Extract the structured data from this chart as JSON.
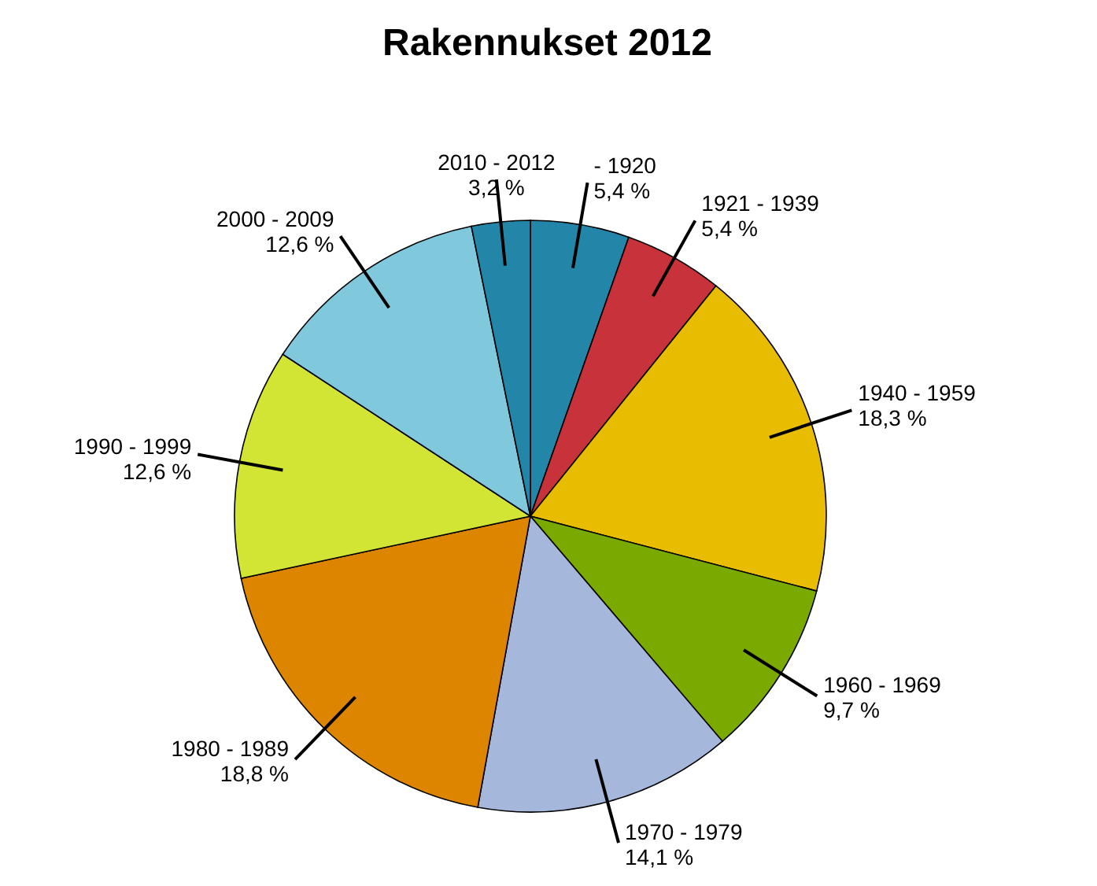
{
  "chart_data": {
    "type": "pie",
    "title": "Rakennukset 2012",
    "categories": [
      "- 1920",
      "1921 - 1939",
      "1940 - 1959",
      "1960 - 1969",
      "1970 - 1979",
      "1980 - 1989",
      "1990 - 1999",
      "2000 - 2009",
      "2010 - 2012"
    ],
    "values": [
      5.4,
      5.4,
      18.3,
      9.7,
      14.1,
      18.8,
      12.6,
      12.6,
      3.2
    ],
    "value_labels": [
      "5,4 %",
      "5,4 %",
      "18,3 %",
      "9,7 %",
      "14,1 %",
      "18,8 %",
      "12,6 %",
      "12,6 %",
      "3,2 %"
    ],
    "colors": [
      "#2386a8",
      "#c8323a",
      "#e8bc00",
      "#7aaa00",
      "#a6b7dc",
      "#de8500",
      "#d2e434",
      "#80c8dc",
      "#2386a8"
    ]
  }
}
